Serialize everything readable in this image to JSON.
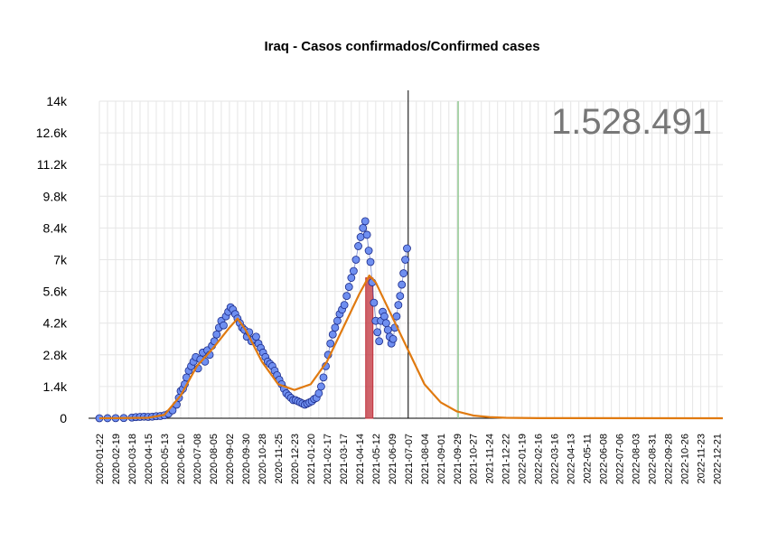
{
  "chart_data": {
    "type": "scatter",
    "title": "Iraq - Casos confirmados/Confirmed cases",
    "total_label": "1.528.491",
    "xlabel": "",
    "ylabel": "",
    "ylim": [
      0,
      14000
    ],
    "y_ticks": [
      0,
      1400,
      2800,
      4200,
      5600,
      7000,
      8400,
      9800,
      11200,
      12600,
      14000
    ],
    "y_tick_labels": [
      "0",
      "1.4k",
      "2.8k",
      "4.2k",
      "5.6k",
      "7k",
      "8.4k",
      "9.8k",
      "11.2k",
      "12.6k",
      "14k"
    ],
    "x_start": "2020-01-22",
    "x_end": "2022-12-31",
    "x_tick_labels": [
      "2020-01-22",
      "2020-02-19",
      "2020-03-18",
      "2020-04-15",
      "2020-05-13",
      "2020-06-10",
      "2020-07-08",
      "2020-08-05",
      "2020-09-02",
      "2020-09-30",
      "2020-10-28",
      "2020-11-25",
      "2020-12-23",
      "2021-01-20",
      "2021-02-17",
      "2021-03-17",
      "2021-04-14",
      "2021-05-12",
      "2021-06-09",
      "2021-07-07",
      "2021-08-04",
      "2021-09-01",
      "2021-09-29",
      "2021-10-27",
      "2021-11-24",
      "2021-12-22",
      "2022-01-19",
      "2022-02-16",
      "2022-03-16",
      "2022-04-13",
      "2022-05-11",
      "2022-06-08",
      "2022-07-06",
      "2022-08-03",
      "2022-08-31",
      "2022-09-28",
      "2022-10-26",
      "2022-11-23",
      "2022-12-21"
    ],
    "vline_current": "2021-07-07",
    "vline_green": "2021-10-01",
    "peak_bar": {
      "date": "2021-05-01",
      "value": 6200
    },
    "grid": true,
    "colors": {
      "points_fill": "#6f8ff0",
      "points_stroke": "#1a2a8a",
      "connect_line": "#2840b0",
      "fit_curve": "#e07a10",
      "peak_bar": "#c0303a",
      "vline_current": "#000000",
      "vline_green": "#90c890",
      "grid": "#e6e6e6"
    },
    "series": [
      {
        "type": "points",
        "points": [
          [
            "2020-01-22",
            0
          ],
          [
            "2020-02-05",
            2
          ],
          [
            "2020-02-19",
            5
          ],
          [
            "2020-03-04",
            10
          ],
          [
            "2020-03-18",
            30
          ],
          [
            "2020-03-25",
            50
          ],
          [
            "2020-04-01",
            60
          ],
          [
            "2020-04-08",
            70
          ],
          [
            "2020-04-15",
            60
          ],
          [
            "2020-04-22",
            70
          ],
          [
            "2020-04-29",
            90
          ],
          [
            "2020-05-06",
            100
          ],
          [
            "2020-05-13",
            130
          ],
          [
            "2020-05-20",
            200
          ],
          [
            "2020-05-27",
            350
          ],
          [
            "2020-06-03",
            600
          ],
          [
            "2020-06-07",
            900
          ],
          [
            "2020-06-10",
            1200
          ],
          [
            "2020-06-14",
            1300
          ],
          [
            "2020-06-17",
            1500
          ],
          [
            "2020-06-20",
            1800
          ],
          [
            "2020-06-24",
            2100
          ],
          [
            "2020-06-28",
            2300
          ],
          [
            "2020-07-02",
            2500
          ],
          [
            "2020-07-06",
            2700
          ],
          [
            "2020-07-10",
            2200
          ],
          [
            "2020-07-14",
            2600
          ],
          [
            "2020-07-18",
            2900
          ],
          [
            "2020-07-22",
            2500
          ],
          [
            "2020-07-26",
            3000
          ],
          [
            "2020-07-30",
            2800
          ],
          [
            "2020-08-03",
            3200
          ],
          [
            "2020-08-07",
            3400
          ],
          [
            "2020-08-11",
            3700
          ],
          [
            "2020-08-15",
            4000
          ],
          [
            "2020-08-19",
            4300
          ],
          [
            "2020-08-23",
            4100
          ],
          [
            "2020-08-27",
            4500
          ],
          [
            "2020-08-31",
            4700
          ],
          [
            "2020-09-04",
            4900
          ],
          [
            "2020-09-08",
            4800
          ],
          [
            "2020-09-12",
            4600
          ],
          [
            "2020-09-16",
            4400
          ],
          [
            "2020-09-20",
            4200
          ],
          [
            "2020-09-24",
            4000
          ],
          [
            "2020-09-28",
            3900
          ],
          [
            "2020-10-02",
            3600
          ],
          [
            "2020-10-06",
            3800
          ],
          [
            "2020-10-10",
            3400
          ],
          [
            "2020-10-14",
            3500
          ],
          [
            "2020-10-18",
            3600
          ],
          [
            "2020-10-22",
            3300
          ],
          [
            "2020-10-26",
            3100
          ],
          [
            "2020-10-30",
            2900
          ],
          [
            "2020-11-03",
            2700
          ],
          [
            "2020-11-07",
            2500
          ],
          [
            "2020-11-11",
            2400
          ],
          [
            "2020-11-15",
            2300
          ],
          [
            "2020-11-19",
            2100
          ],
          [
            "2020-11-23",
            1900
          ],
          [
            "2020-11-27",
            1700
          ],
          [
            "2020-12-01",
            1500
          ],
          [
            "2020-12-05",
            1300
          ],
          [
            "2020-12-09",
            1100
          ],
          [
            "2020-12-13",
            1000
          ],
          [
            "2020-12-17",
            900
          ],
          [
            "2020-12-21",
            800
          ],
          [
            "2020-12-25",
            800
          ],
          [
            "2020-12-29",
            750
          ],
          [
            "2021-01-02",
            700
          ],
          [
            "2021-01-06",
            650
          ],
          [
            "2021-01-10",
            600
          ],
          [
            "2021-01-14",
            650
          ],
          [
            "2021-01-18",
            700
          ],
          [
            "2021-01-22",
            750
          ],
          [
            "2021-01-26",
            850
          ],
          [
            "2021-01-30",
            900
          ],
          [
            "2021-02-03",
            1100
          ],
          [
            "2021-02-07",
            1400
          ],
          [
            "2021-02-11",
            1800
          ],
          [
            "2021-02-15",
            2300
          ],
          [
            "2021-02-19",
            2800
          ],
          [
            "2021-02-23",
            3300
          ],
          [
            "2021-02-27",
            3700
          ],
          [
            "2021-03-03",
            4000
          ],
          [
            "2021-03-07",
            4300
          ],
          [
            "2021-03-11",
            4600
          ],
          [
            "2021-03-15",
            4800
          ],
          [
            "2021-03-19",
            5000
          ],
          [
            "2021-03-23",
            5400
          ],
          [
            "2021-03-27",
            5800
          ],
          [
            "2021-03-31",
            6200
          ],
          [
            "2021-04-04",
            6500
          ],
          [
            "2021-04-08",
            7000
          ],
          [
            "2021-04-12",
            7600
          ],
          [
            "2021-04-16",
            8000
          ],
          [
            "2021-04-20",
            8400
          ],
          [
            "2021-04-24",
            8700
          ],
          [
            "2021-04-27",
            8100
          ],
          [
            "2021-04-30",
            7400
          ],
          [
            "2021-05-03",
            6900
          ],
          [
            "2021-05-06",
            6000
          ],
          [
            "2021-05-09",
            5100
          ],
          [
            "2021-05-12",
            4300
          ],
          [
            "2021-05-15",
            3800
          ],
          [
            "2021-05-18",
            3400
          ],
          [
            "2021-05-21",
            4300
          ],
          [
            "2021-05-24",
            4700
          ],
          [
            "2021-05-27",
            4500
          ],
          [
            "2021-05-30",
            4200
          ],
          [
            "2021-06-02",
            3900
          ],
          [
            "2021-06-05",
            3600
          ],
          [
            "2021-06-08",
            3300
          ],
          [
            "2021-06-11",
            3500
          ],
          [
            "2021-06-14",
            4000
          ],
          [
            "2021-06-17",
            4500
          ],
          [
            "2021-06-20",
            5000
          ],
          [
            "2021-06-23",
            5400
          ],
          [
            "2021-06-26",
            5900
          ],
          [
            "2021-06-29",
            6400
          ],
          [
            "2021-07-02",
            7000
          ],
          [
            "2021-07-05",
            7500
          ]
        ]
      },
      {
        "type": "fit",
        "points": [
          [
            "2020-01-22",
            0
          ],
          [
            "2020-04-15",
            20
          ],
          [
            "2020-05-13",
            150
          ],
          [
            "2020-06-10",
            1000
          ],
          [
            "2020-07-08",
            2300
          ],
          [
            "2020-08-05",
            3100
          ],
          [
            "2020-09-02",
            4000
          ],
          [
            "2020-09-16",
            4400
          ],
          [
            "2020-09-30",
            3900
          ],
          [
            "2020-10-28",
            2500
          ],
          [
            "2020-11-25",
            1500
          ],
          [
            "2020-12-23",
            1250
          ],
          [
            "2021-01-20",
            1500
          ],
          [
            "2021-02-17",
            2500
          ],
          [
            "2021-03-17",
            4000
          ],
          [
            "2021-04-14",
            5500
          ],
          [
            "2021-05-01",
            6300
          ],
          [
            "2021-05-12",
            6000
          ],
          [
            "2021-06-09",
            4500
          ],
          [
            "2021-07-07",
            3000
          ],
          [
            "2021-08-04",
            1500
          ],
          [
            "2021-09-01",
            700
          ],
          [
            "2021-09-29",
            300
          ],
          [
            "2021-10-27",
            120
          ],
          [
            "2021-11-24",
            50
          ],
          [
            "2021-12-22",
            20
          ],
          [
            "2022-02-16",
            5
          ],
          [
            "2022-12-31",
            0
          ]
        ]
      }
    ]
  }
}
